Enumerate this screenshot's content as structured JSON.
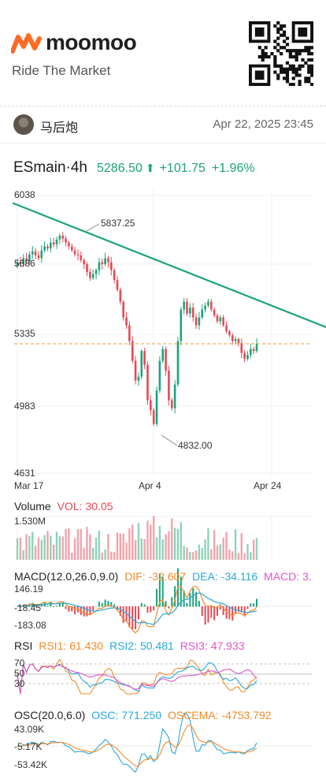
{
  "brand": {
    "name": "moomoo",
    "tagline": "Ride The Market",
    "accent": "#ff6a26"
  },
  "user": {
    "name": "马后炮",
    "timestamp": "Apr 22, 2025 23:45"
  },
  "symbol": {
    "name": "ESmain",
    "interval": "4h",
    "price": "5286.50",
    "change": "+101.75",
    "change_pct": "+1.96%",
    "direction_icon": "up-arrow-icon",
    "color_up": "#1aa57a",
    "color_down": "#e84855"
  },
  "chart_data": [
    {
      "type": "candlestick",
      "title": "ESmain·4h",
      "y_ticks": [
        "6038",
        "5686",
        "5335",
        "4983",
        "4631"
      ],
      "x_ticks": [
        "Mar 17",
        "Apr 4",
        "Apr 24"
      ],
      "ylim": [
        4631,
        6038
      ],
      "annotations": {
        "high_label": "5837.25",
        "low_label": "4832.00",
        "last_price": 5286.5
      },
      "trendline": {
        "from": [
          0,
          6000
        ],
        "to": [
          125,
          5230
        ],
        "color": "#1aa57a"
      },
      "closes": [
        5700,
        5690,
        5720,
        5705,
        5740,
        5755,
        5735,
        5720,
        5760,
        5780,
        5770,
        5800,
        5790,
        5815,
        5835,
        5820,
        5800,
        5780,
        5760,
        5740,
        5735,
        5710,
        5690,
        5650,
        5620,
        5640,
        5660,
        5700,
        5690,
        5720,
        5700,
        5660,
        5610,
        5560,
        5500,
        5420,
        5380,
        5300,
        5200,
        5100,
        5120,
        5250,
        5180,
        5000,
        4950,
        4880,
        5050,
        5200,
        5260,
        5150,
        5000,
        4960,
        5080,
        5300,
        5460,
        5500,
        5440,
        5470,
        5420,
        5380,
        5420,
        5460,
        5480,
        5500,
        5460,
        5430,
        5400,
        5420,
        5380,
        5350,
        5330,
        5300,
        5310,
        5290,
        5240,
        5210,
        5230,
        5260,
        5250,
        5286
      ]
    },
    {
      "type": "bar",
      "title": "Volume",
      "legend": [
        {
          "name": "VOL",
          "value": "30.05",
          "color": "#e84855"
        }
      ],
      "y_ticks": [
        "1.530M"
      ],
      "ylim": [
        0,
        1.53
      ]
    },
    {
      "type": "bar",
      "title": "MACD(12.0,26.0,9.0)",
      "legend": [
        {
          "name": "DIF",
          "value": "-32.607",
          "color": "#f08c2a"
        },
        {
          "name": "DEA",
          "value": "-34.116",
          "color": "#2aa8d8"
        },
        {
          "name": "MACD",
          "value": "3.…",
          "color": "#e055c8"
        }
      ],
      "y_ticks": [
        "146.19",
        "-18.45",
        "-183.08"
      ]
    },
    {
      "type": "line",
      "title": "RSI",
      "legend": [
        {
          "name": "RSI1",
          "value": "61.430",
          "color": "#f08c2a"
        },
        {
          "name": "RSI2",
          "value": "50.481",
          "color": "#2aa8d8"
        },
        {
          "name": "RSI3",
          "value": "47.933",
          "color": "#e055c8"
        }
      ],
      "y_ticks": [
        "70",
        "50",
        "30"
      ]
    },
    {
      "type": "line",
      "title": "OSC(20.0,6.0)",
      "legend": [
        {
          "name": "OSC",
          "value": "771.250",
          "color": "#2aa8d8"
        },
        {
          "name": "OSCEMA",
          "value": "-4753.792",
          "color": "#f08c2a"
        }
      ],
      "y_ticks": [
        "43.09K",
        "-5.17K",
        "-53.42K"
      ]
    }
  ]
}
